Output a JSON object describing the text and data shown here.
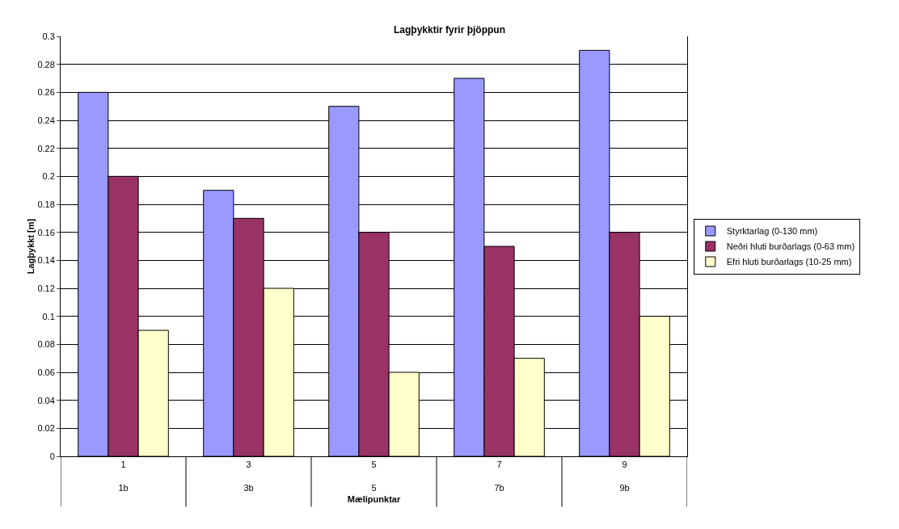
{
  "chart_data": {
    "type": "bar",
    "title": "Lagþykktir fyrir þjöppun",
    "xlabel": "Mælipunktar",
    "ylabel": "Lagþykkt [m]",
    "categories": [
      "1\n1b",
      "3\n3b",
      "5\n5",
      "7\n7b",
      "9\n9b"
    ],
    "series": [
      {
        "name": "Styrktarlag (0-130 mm)",
        "color": "#9999ff",
        "values": [
          0.26,
          0.19,
          0.25,
          0.27,
          0.29
        ]
      },
      {
        "name": "Neðri hluti burðarlags (0-63 mm)",
        "color": "#993366",
        "values": [
          0.2,
          0.17,
          0.16,
          0.15,
          0.16
        ]
      },
      {
        "name": "Efri hluti burðarlags (10-25 mm)",
        "color": "#ffffcc",
        "values": [
          0.09,
          0.12,
          0.06,
          0.07,
          0.1
        ]
      }
    ],
    "ylim": [
      0,
      0.3
    ],
    "yticks": [
      0,
      0.02,
      0.04,
      0.06,
      0.08,
      0.1,
      0.12,
      0.14,
      0.16,
      0.18,
      0.2,
      0.22,
      0.24,
      0.26,
      0.28,
      0.3
    ],
    "grid": "y",
    "legend": "right"
  }
}
